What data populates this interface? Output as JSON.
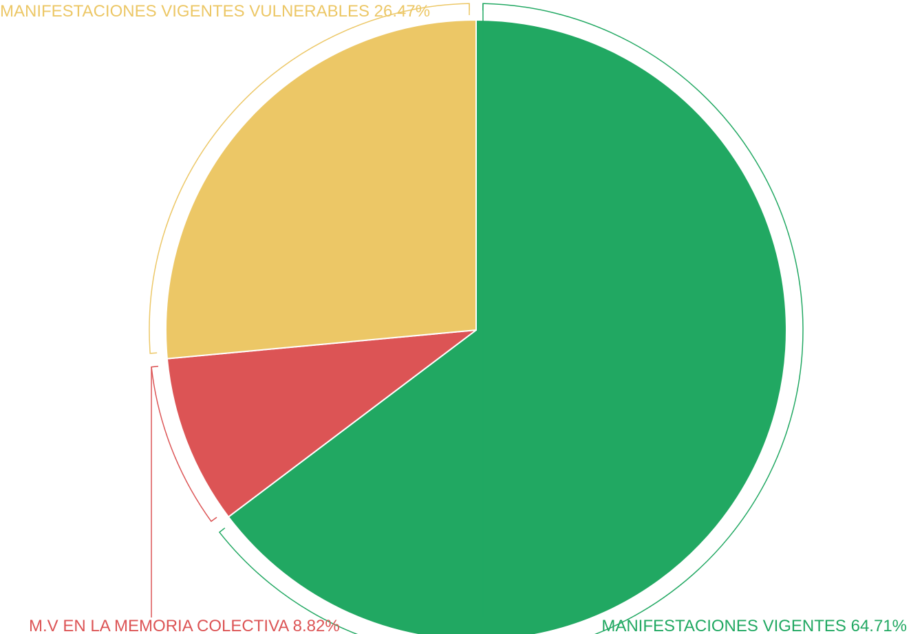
{
  "chart_data": {
    "type": "pie",
    "start": "12 o'clock",
    "direction": "clockwise",
    "slices": [
      {
        "name": "MANIFESTACIONES VIGENTES",
        "value": 64.71,
        "label": "MANIFESTACIONES VIGENTES 64.71%",
        "color": "#21a862",
        "label_position": "bottom-right"
      },
      {
        "name": "M.V EN LA MEMORIA COLECTIVA",
        "value": 8.82,
        "label": "M.V EN LA MEMORIA COLECTIVA 8.82%",
        "color": "#dc5455",
        "label_position": "bottom-left"
      },
      {
        "name": "MANIFESTACIONES VIGENTES VULNERABLES",
        "value": 26.47,
        "label": "MANIFESTACIONES VIGENTES VULNERABLES 26.47%",
        "color": "#ecc766",
        "label_position": "top-left"
      }
    ],
    "legend": "none"
  }
}
